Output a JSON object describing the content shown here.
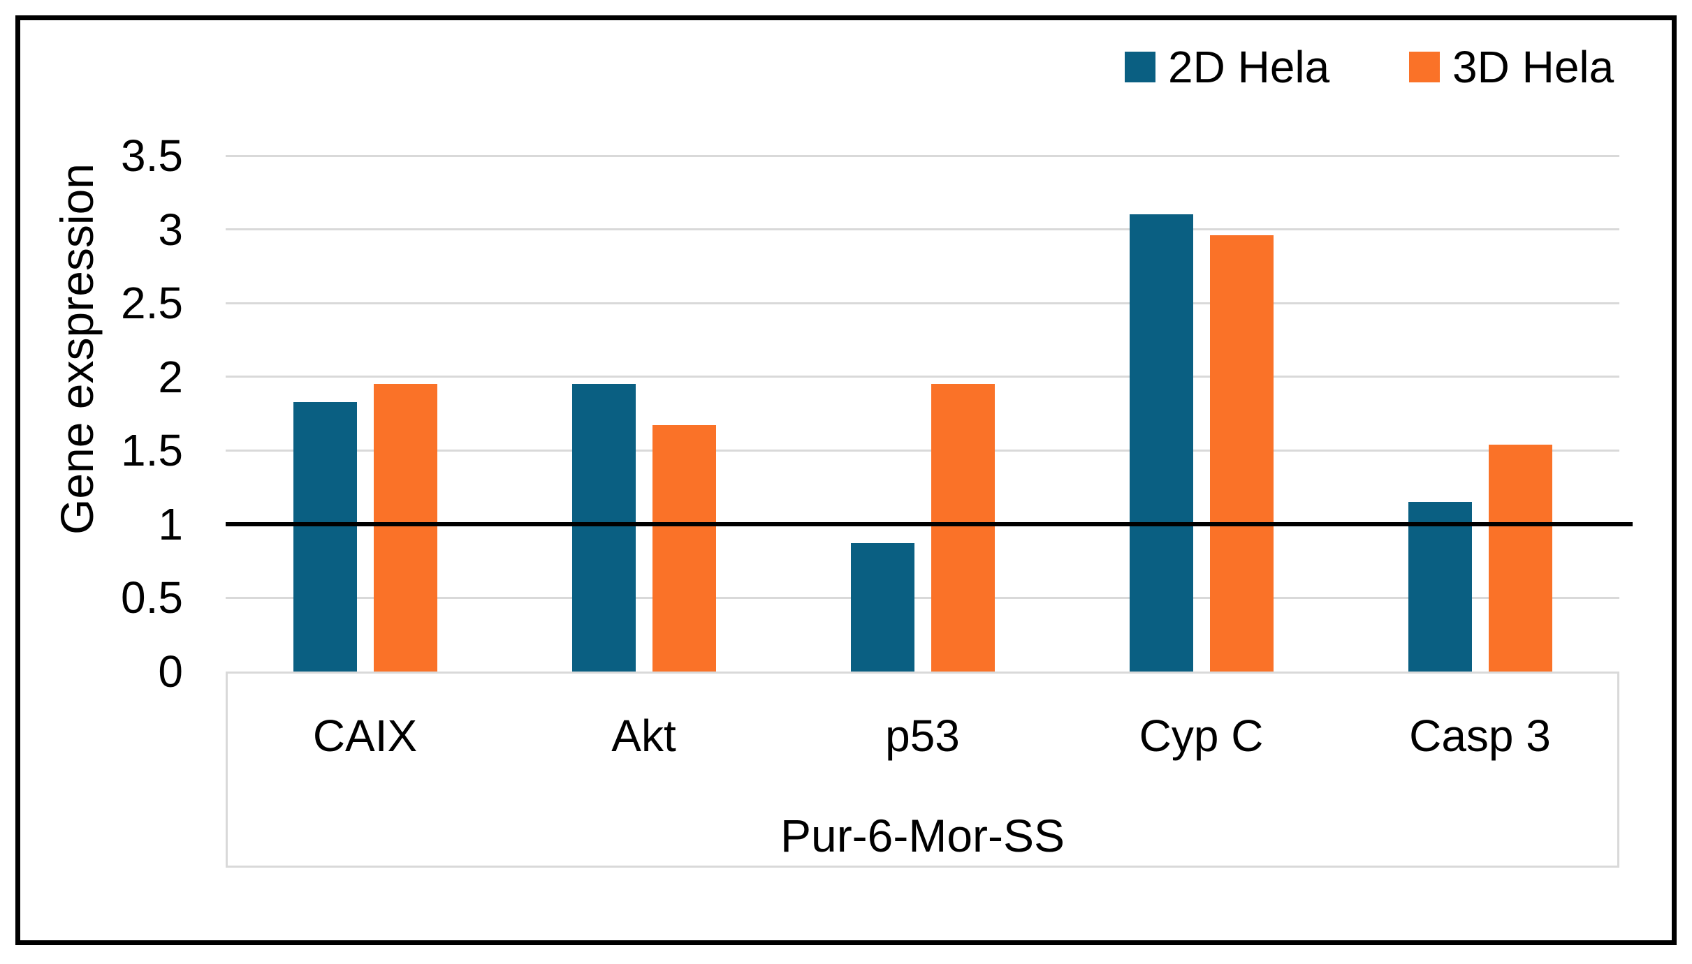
{
  "chart_data": {
    "type": "bar",
    "title": "",
    "categories": [
      "CAIX",
      "Akt",
      "p53",
      "Cyp C",
      "Casp 3"
    ],
    "series": [
      {
        "name": "2D Hela",
        "color": "#0A5F82",
        "values": [
          1.83,
          1.95,
          0.87,
          3.1,
          1.15
        ]
      },
      {
        "name": "3D Hela",
        "color": "#FA7228",
        "values": [
          1.95,
          1.67,
          1.95,
          2.96,
          1.54
        ]
      }
    ],
    "xlabel": "Pur-6-Mor-SS",
    "ylabel": "Gene exspression",
    "ylim": [
      0,
      3.5
    ],
    "yticks": [
      3.5,
      3,
      2.5,
      2,
      1.5,
      1,
      0.5,
      0
    ],
    "ytick_labels": [
      "3.5",
      "3",
      "2.5",
      "2",
      "1.5",
      "1",
      "0.5",
      "0"
    ],
    "grid": true,
    "gridline_color": "#D9D9D9",
    "axis_box_color": "#D9D9D9",
    "legend_position": "top-right",
    "reference_line": {
      "value": 1,
      "color": "#000000"
    },
    "frame_color": "#000000",
    "background": "#FFFFFF",
    "text_color": "#000000"
  }
}
